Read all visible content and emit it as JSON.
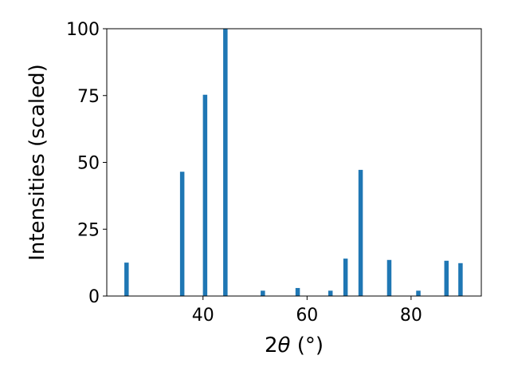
{
  "chart_data": {
    "type": "bar",
    "xlabel_prefix": "2",
    "xlabel_symbol": "θ",
    "xlabel_suffix": " (°)",
    "ylabel": "Intensities (scaled)",
    "xlim": [
      21.5,
      93.5
    ],
    "ylim": [
      0,
      100
    ],
    "xticks": [
      40,
      60,
      80
    ],
    "yticks": [
      0,
      25,
      50,
      75,
      100
    ],
    "bar_color": "#1f77b4",
    "grid": false,
    "bars": [
      {
        "x": 25.3,
        "y": 12.5
      },
      {
        "x": 36.0,
        "y": 46.5
      },
      {
        "x": 40.4,
        "y": 75.3
      },
      {
        "x": 44.3,
        "y": 100.0
      },
      {
        "x": 51.5,
        "y": 2.0
      },
      {
        "x": 58.2,
        "y": 3.0
      },
      {
        "x": 64.5,
        "y": 2.0
      },
      {
        "x": 67.4,
        "y": 14.0
      },
      {
        "x": 70.3,
        "y": 47.2
      },
      {
        "x": 75.8,
        "y": 13.5
      },
      {
        "x": 81.4,
        "y": 2.0
      },
      {
        "x": 86.8,
        "y": 13.2
      },
      {
        "x": 89.5,
        "y": 12.3
      }
    ]
  }
}
